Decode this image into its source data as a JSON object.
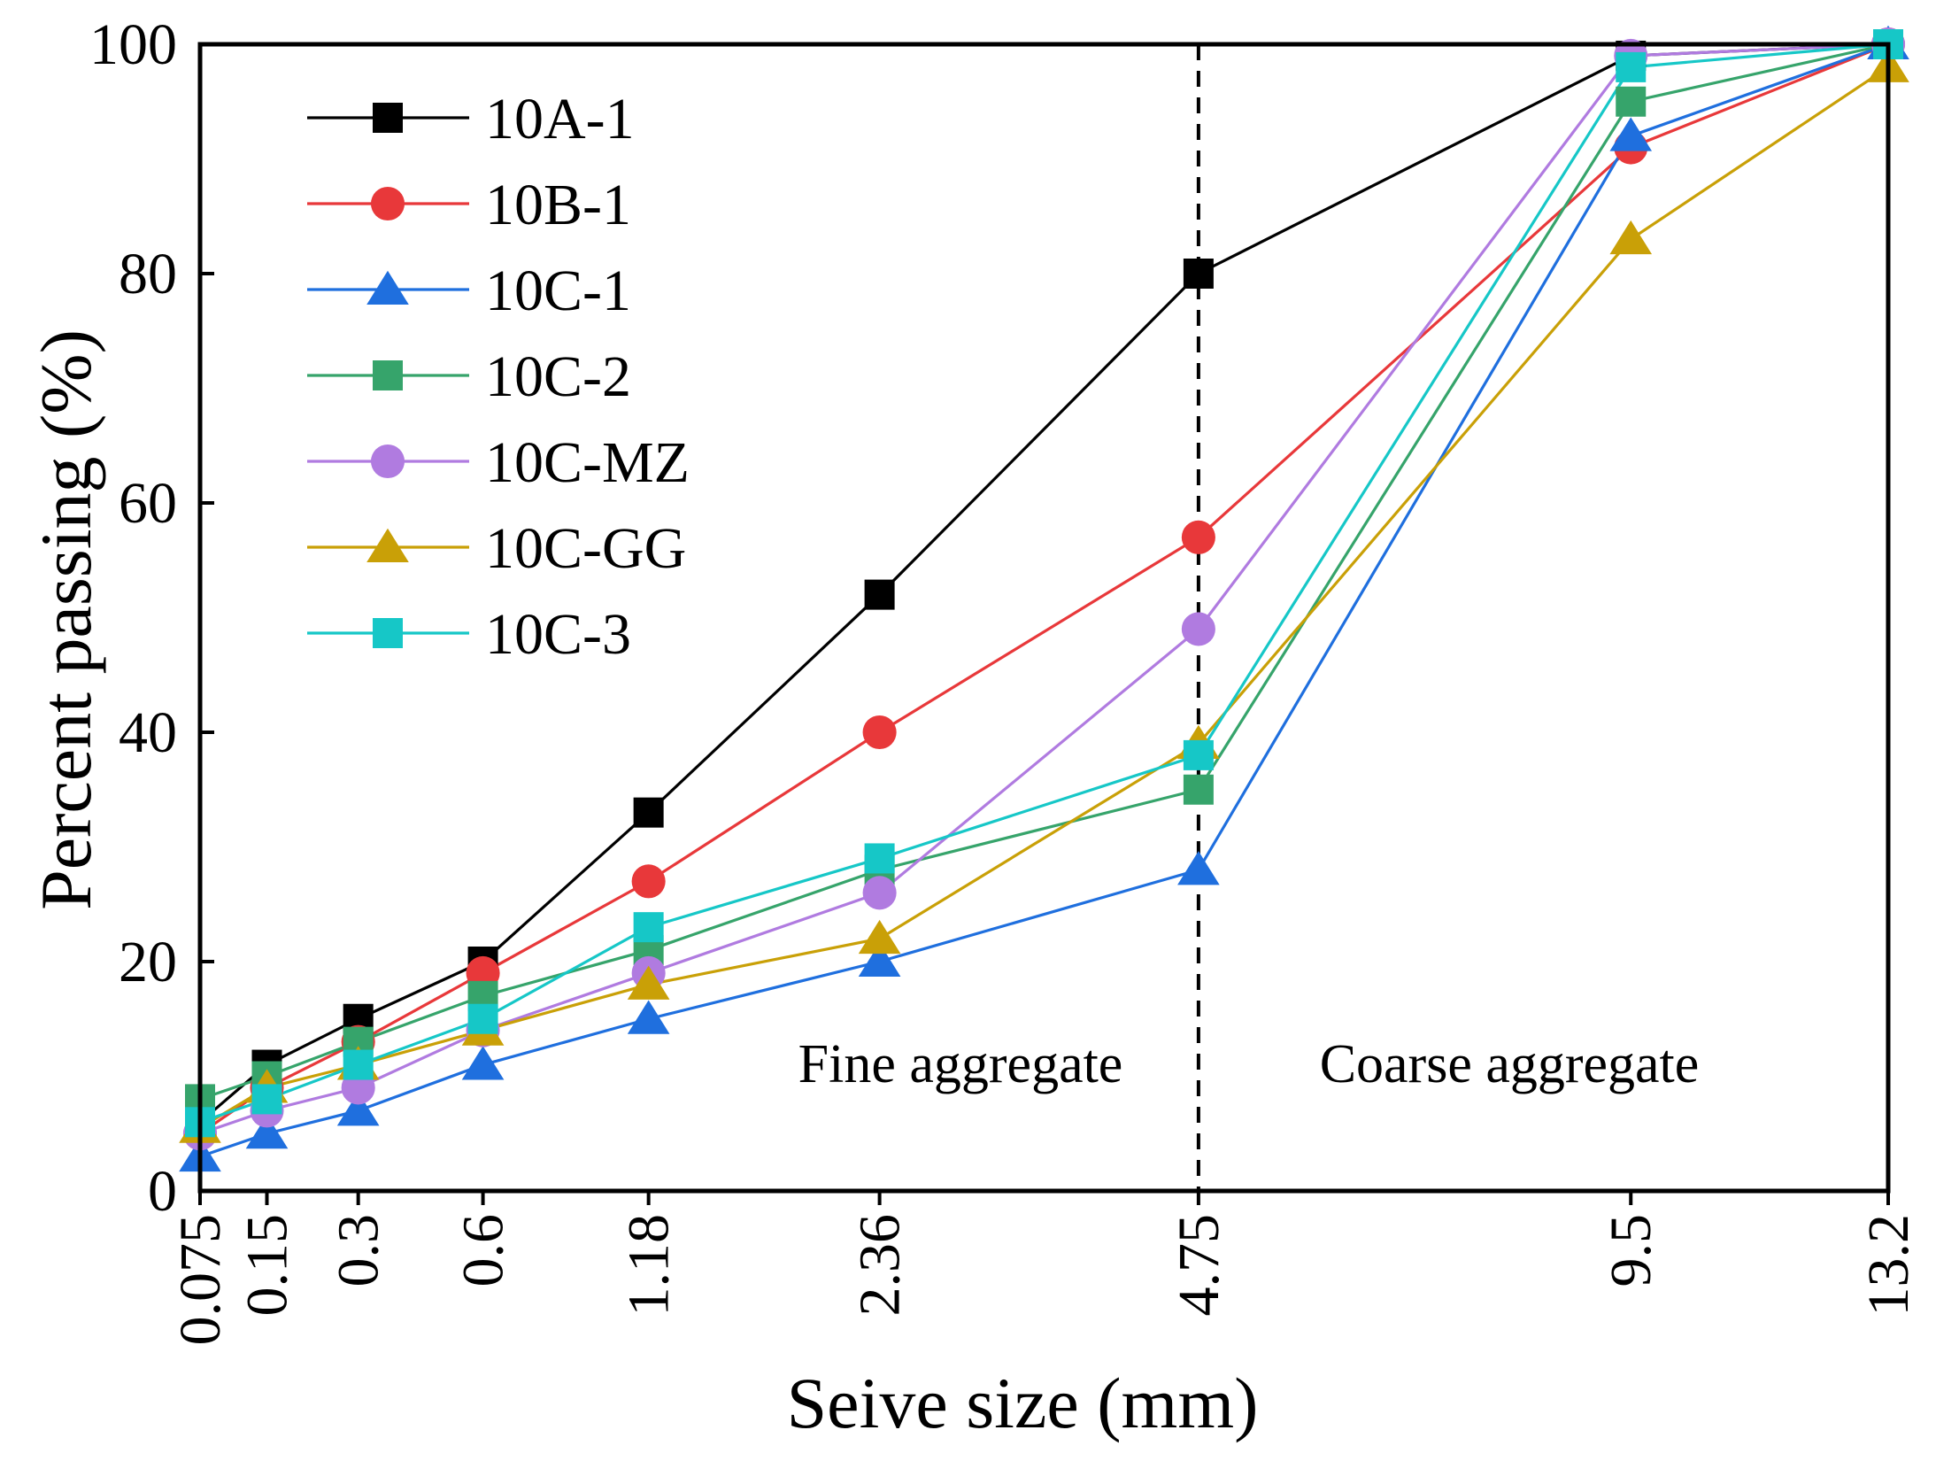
{
  "chart_data": {
    "type": "line",
    "title": "",
    "xlabel": "Seive size (mm)",
    "ylabel": "Percent passing (%)",
    "scale_x": "power_0.45",
    "ylim": [
      0,
      100
    ],
    "yticks": [
      "0",
      "20",
      "40",
      "60",
      "80",
      "100"
    ],
    "categories": [
      "0.075",
      "0.15",
      "0.3",
      "0.6",
      "1.18",
      "2.36",
      "4.75",
      "9.5",
      "13.2"
    ],
    "x": [
      0.075,
      0.15,
      0.3,
      0.6,
      1.18,
      2.36,
      4.75,
      9.5,
      13.2
    ],
    "divider_at": 4.75,
    "annotations": {
      "left": "Fine aggregate",
      "right": "Coarse aggregate"
    },
    "legend_position": "top-left",
    "series": [
      {
        "name": "10A-1",
        "color": "#000000",
        "marker": "square",
        "values": [
          6,
          11,
          15,
          20,
          33,
          52,
          80,
          99,
          100
        ]
      },
      {
        "name": "10B-1",
        "color": "#e8383a",
        "marker": "circle",
        "values": [
          5,
          9,
          13,
          19,
          27,
          40,
          57,
          91,
          100
        ]
      },
      {
        "name": "10C-1",
        "color": "#1f6fde",
        "marker": "triangle",
        "values": [
          3,
          5,
          7,
          11,
          15,
          20,
          28,
          92,
          100
        ]
      },
      {
        "name": "10C-2",
        "color": "#36a46b",
        "marker": "square",
        "values": [
          8,
          10,
          13,
          17,
          21,
          28,
          35,
          95,
          100
        ]
      },
      {
        "name": "10C-MZ",
        "color": "#b07be0",
        "marker": "circle",
        "values": [
          5,
          7,
          9,
          14,
          19,
          26,
          49,
          99,
          100
        ]
      },
      {
        "name": "10C-GG",
        "color": "#c9a007",
        "marker": "triangle",
        "values": [
          5.5,
          9,
          11,
          14,
          18,
          22,
          39,
          83,
          98
        ]
      },
      {
        "name": "10C-3",
        "color": "#16c7c7",
        "marker": "square",
        "values": [
          6,
          8,
          11,
          15,
          23,
          29,
          38,
          98,
          100
        ]
      }
    ]
  }
}
